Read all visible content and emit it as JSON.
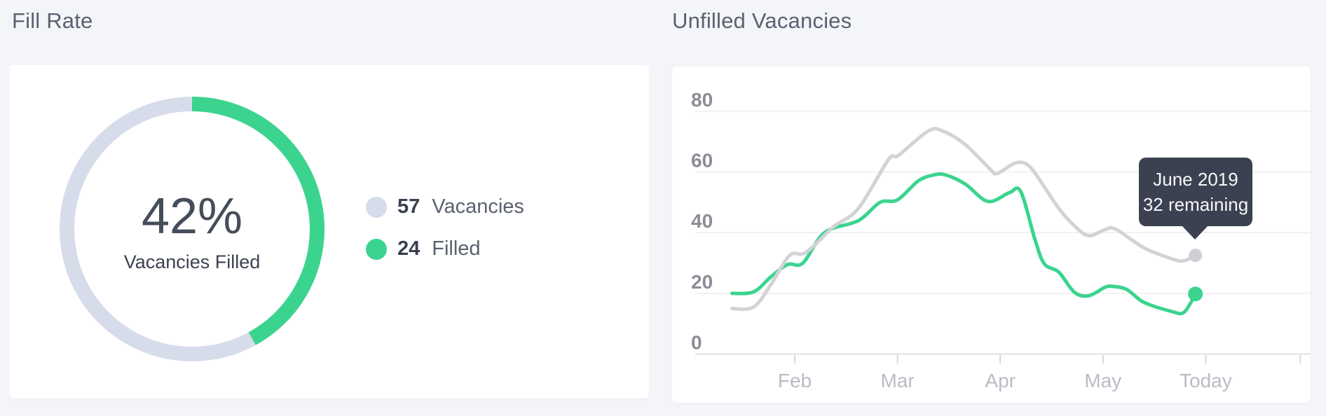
{
  "fill_rate": {
    "title": "Fill Rate",
    "percent": "42%",
    "center_label": "Vacancies Filled",
    "legend": [
      {
        "value": "57",
        "label": "Vacancies",
        "color": "#d7dceb"
      },
      {
        "value": "24",
        "label": "Filled",
        "color": "#3bd48f"
      }
    ]
  },
  "unfilled": {
    "title": "Unfilled Vacancies",
    "tooltip": {
      "line1": "June 2019",
      "line2": "32 remaining"
    }
  },
  "colors": {
    "page_bg": "#f3f5f9",
    "card_bg": "#ffffff",
    "green": "#3bd48f",
    "periwinkle": "#d7dceb",
    "gray_line": "#d2d3d7",
    "gray_dot": "#ced0d4",
    "grid": "#ededf0",
    "axis": "#dfe0e3",
    "tick": "#d6d7da",
    "tooltip_bg": "#3b4150",
    "title_text": "#5b6170",
    "y_label": "#8b8e96",
    "x_label": "#b9bcc4"
  },
  "chart_data": [
    {
      "type": "pie",
      "subtype": "donut",
      "title": "Fill Rate",
      "center_value": "42%",
      "center_label": "Vacancies Filled",
      "fill_pct": 42,
      "legend": [
        {
          "value": 57,
          "label": "Vacancies",
          "color": "#d7dceb"
        },
        {
          "value": 24,
          "label": "Filled",
          "color": "#3bd48f"
        }
      ]
    },
    {
      "type": "line",
      "title": "Unfilled Vacancies",
      "x_tick_labels": [
        "Feb",
        "Mar",
        "Apr",
        "May",
        "Today"
      ],
      "x_tick_units": [
        1,
        2,
        3,
        4,
        5
      ],
      "extra_x_tick_units": [
        5.92
      ],
      "y_ticks": [
        80,
        60,
        40,
        20,
        0
      ],
      "ylim": [
        0,
        80
      ],
      "xlim_units": [
        0,
        6
      ],
      "grid": "horizontal",
      "legend_position": "none",
      "annotation": {
        "text_line1": "June 2019",
        "text_line2": "32 remaining",
        "series": "gray",
        "value": 32
      },
      "series": [
        {
          "name": "gray",
          "color": "#d2d3d7",
          "points": [
            [
              0.39,
              15
            ],
            [
              0.6,
              15.5
            ],
            [
              0.77,
              23
            ],
            [
              0.95,
              32.5
            ],
            [
              1.11,
              33.5
            ],
            [
              1.38,
              42
            ],
            [
              1.62,
              48
            ],
            [
              1.91,
              64
            ],
            [
              2.01,
              65.5
            ],
            [
              2.3,
              73.5
            ],
            [
              2.44,
              73.5
            ],
            [
              2.66,
              69
            ],
            [
              2.9,
              61
            ],
            [
              2.97,
              59.5
            ],
            [
              3.15,
              63
            ],
            [
              3.28,
              62
            ],
            [
              3.43,
              55
            ],
            [
              3.57,
              48
            ],
            [
              3.72,
              42.3
            ],
            [
              3.86,
              39
            ],
            [
              4.02,
              41
            ],
            [
              4.12,
              41.2
            ],
            [
              4.4,
              35
            ],
            [
              4.66,
              31.5
            ],
            [
              4.78,
              30.7
            ],
            [
              4.9,
              32.5
            ]
          ]
        },
        {
          "name": "green",
          "color": "#3bd48f",
          "points": [
            [
              0.39,
              20
            ],
            [
              0.6,
              20.5
            ],
            [
              0.77,
              25.5
            ],
            [
              0.93,
              29.5
            ],
            [
              1.08,
              30
            ],
            [
              1.29,
              40
            ],
            [
              1.62,
              44
            ],
            [
              1.83,
              50
            ],
            [
              2.0,
              50.8
            ],
            [
              2.2,
              57
            ],
            [
              2.35,
              59
            ],
            [
              2.47,
              59
            ],
            [
              2.66,
              56
            ],
            [
              2.88,
              50.3
            ],
            [
              3.09,
              53.2
            ],
            [
              3.2,
              53.5
            ],
            [
              3.34,
              37.5
            ],
            [
              3.43,
              29.7
            ],
            [
              3.57,
              27
            ],
            [
              3.72,
              20.4
            ],
            [
              3.86,
              19.2
            ],
            [
              4.02,
              22
            ],
            [
              4.09,
              22.3
            ],
            [
              4.23,
              21.3
            ],
            [
              4.4,
              17
            ],
            [
              4.67,
              14
            ],
            [
              4.79,
              13.8
            ],
            [
              4.9,
              19.8
            ]
          ]
        }
      ]
    }
  ]
}
